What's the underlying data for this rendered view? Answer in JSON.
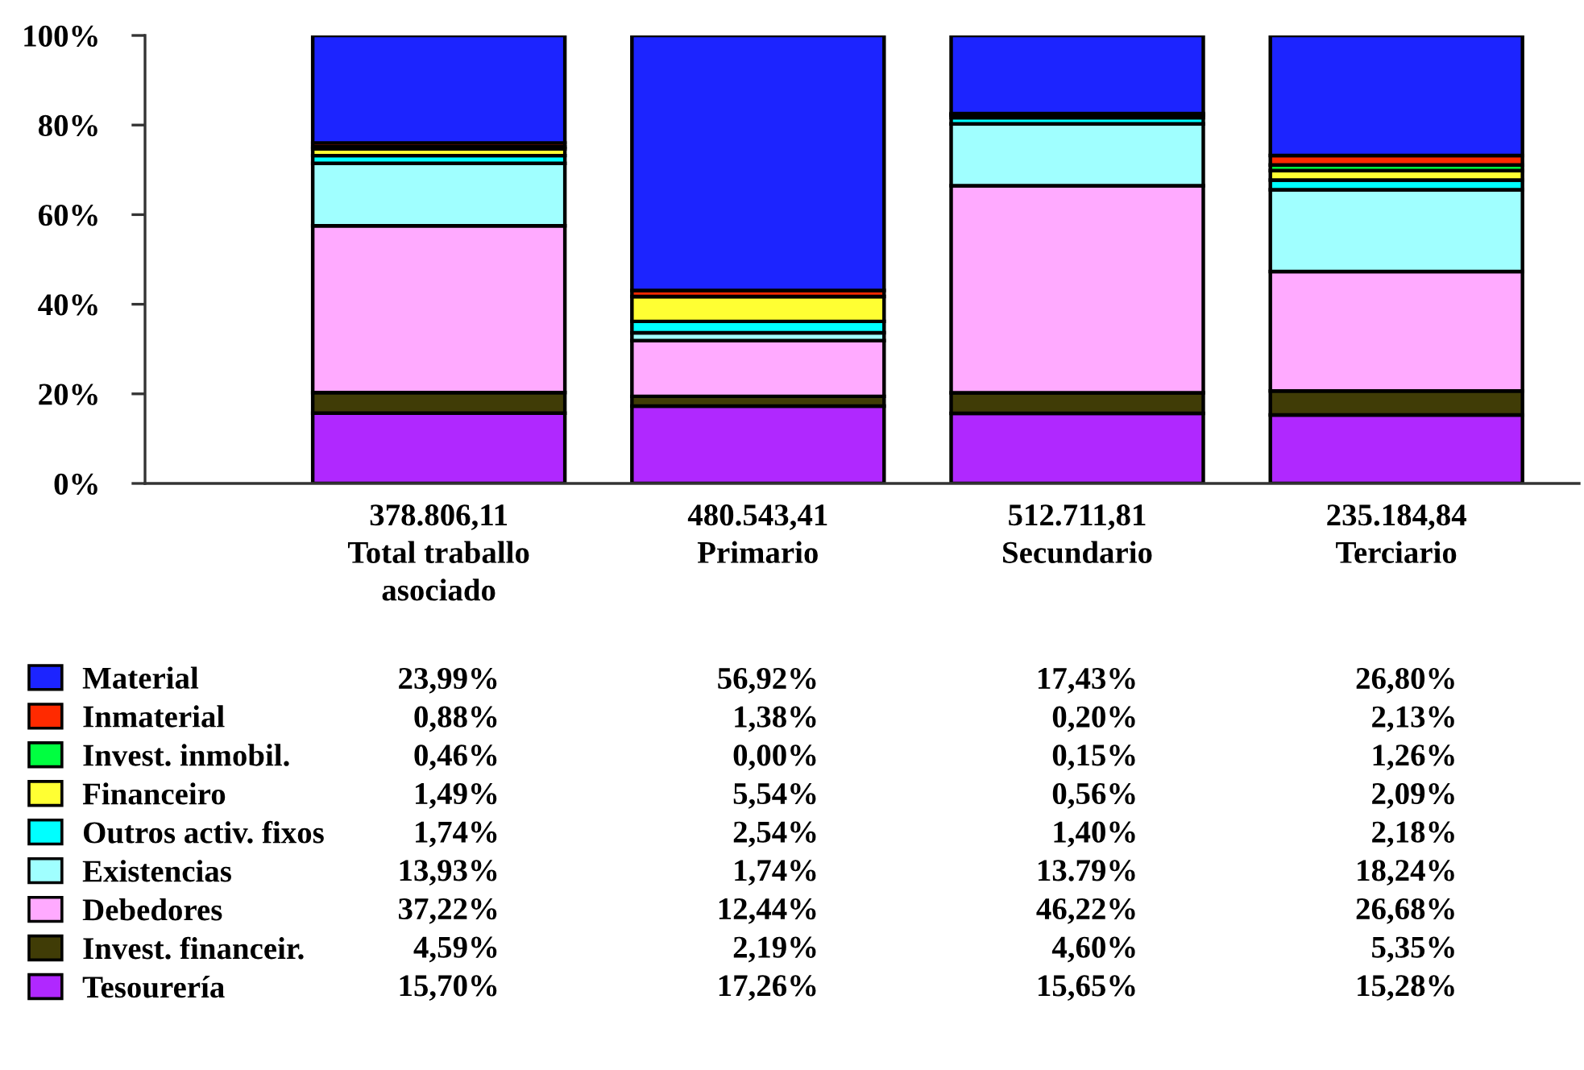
{
  "chart_data": {
    "type": "bar",
    "stacked": true,
    "legend": "bottom",
    "categories": [
      "378.806,11\nTotal traballo\nasociado",
      "480.543,41\nPrimario",
      "512.711,81\nSecundario",
      "235.184,84\nTerciario"
    ],
    "ylim": [
      0,
      100
    ],
    "yticks": [
      {
        "value": 0,
        "label": "0%"
      },
      {
        "value": 20,
        "label": "20%"
      },
      {
        "value": 40,
        "label": "40%"
      },
      {
        "value": 60,
        "label": "60%"
      },
      {
        "value": 80,
        "label": "80%"
      },
      {
        "value": 100,
        "label": "100%"
      }
    ],
    "series": [
      {
        "name": "Tesourería",
        "color": "#b028ff",
        "values": [
          15.7,
          17.26,
          15.65,
          15.28
        ],
        "value_labels": [
          "15,70%",
          "17,26%",
          "15,65%",
          "15,28%"
        ]
      },
      {
        "name": "Invest. financeir.",
        "color": "#403c06",
        "values": [
          4.59,
          2.19,
          4.6,
          5.35
        ],
        "value_labels": [
          "4,59%",
          "2,19%",
          "4,60%",
          "5,35%"
        ]
      },
      {
        "name": "Debedores",
        "color": "#ffaaff",
        "values": [
          37.22,
          12.44,
          46.22,
          26.68
        ],
        "value_labels": [
          "37,22%",
          "12,44%",
          "46,22%",
          "26,68%"
        ]
      },
      {
        "name": "Existencias",
        "color": "#a0ffff",
        "values": [
          13.93,
          1.74,
          13.79,
          18.24
        ],
        "value_labels": [
          "13,93%",
          "1,74%",
          "13.79%",
          "18,24%"
        ]
      },
      {
        "name": "Outros activ. fixos",
        "color": "#00ffff",
        "values": [
          1.74,
          2.54,
          1.4,
          2.18
        ],
        "value_labels": [
          "1,74%",
          "2,54%",
          "1,40%",
          "2,18%"
        ]
      },
      {
        "name": "Financeiro",
        "color": "#ffff33",
        "values": [
          1.49,
          5.54,
          0.56,
          2.09
        ],
        "value_labels": [
          "1,49%",
          "5,54%",
          "0,56%",
          "2,09%"
        ]
      },
      {
        "name": "Invest. inmobil.",
        "color": "#00ff40",
        "values": [
          0.46,
          0.0,
          0.15,
          1.26
        ],
        "value_labels": [
          "0,46%",
          "0,00%",
          "0,15%",
          "1,26%"
        ]
      },
      {
        "name": "Inmaterial",
        "color": "#ff2a00",
        "values": [
          0.88,
          1.38,
          0.2,
          2.13
        ],
        "value_labels": [
          "0,88%",
          "1,38%",
          "0,20%",
          "2,13%"
        ]
      },
      {
        "name": "Material",
        "color": "#1c24ff",
        "values": [
          23.99,
          56.92,
          17.43,
          26.8
        ],
        "value_labels": [
          "23,99%",
          "56,92%",
          "17,43%",
          "26,80%"
        ]
      }
    ]
  }
}
